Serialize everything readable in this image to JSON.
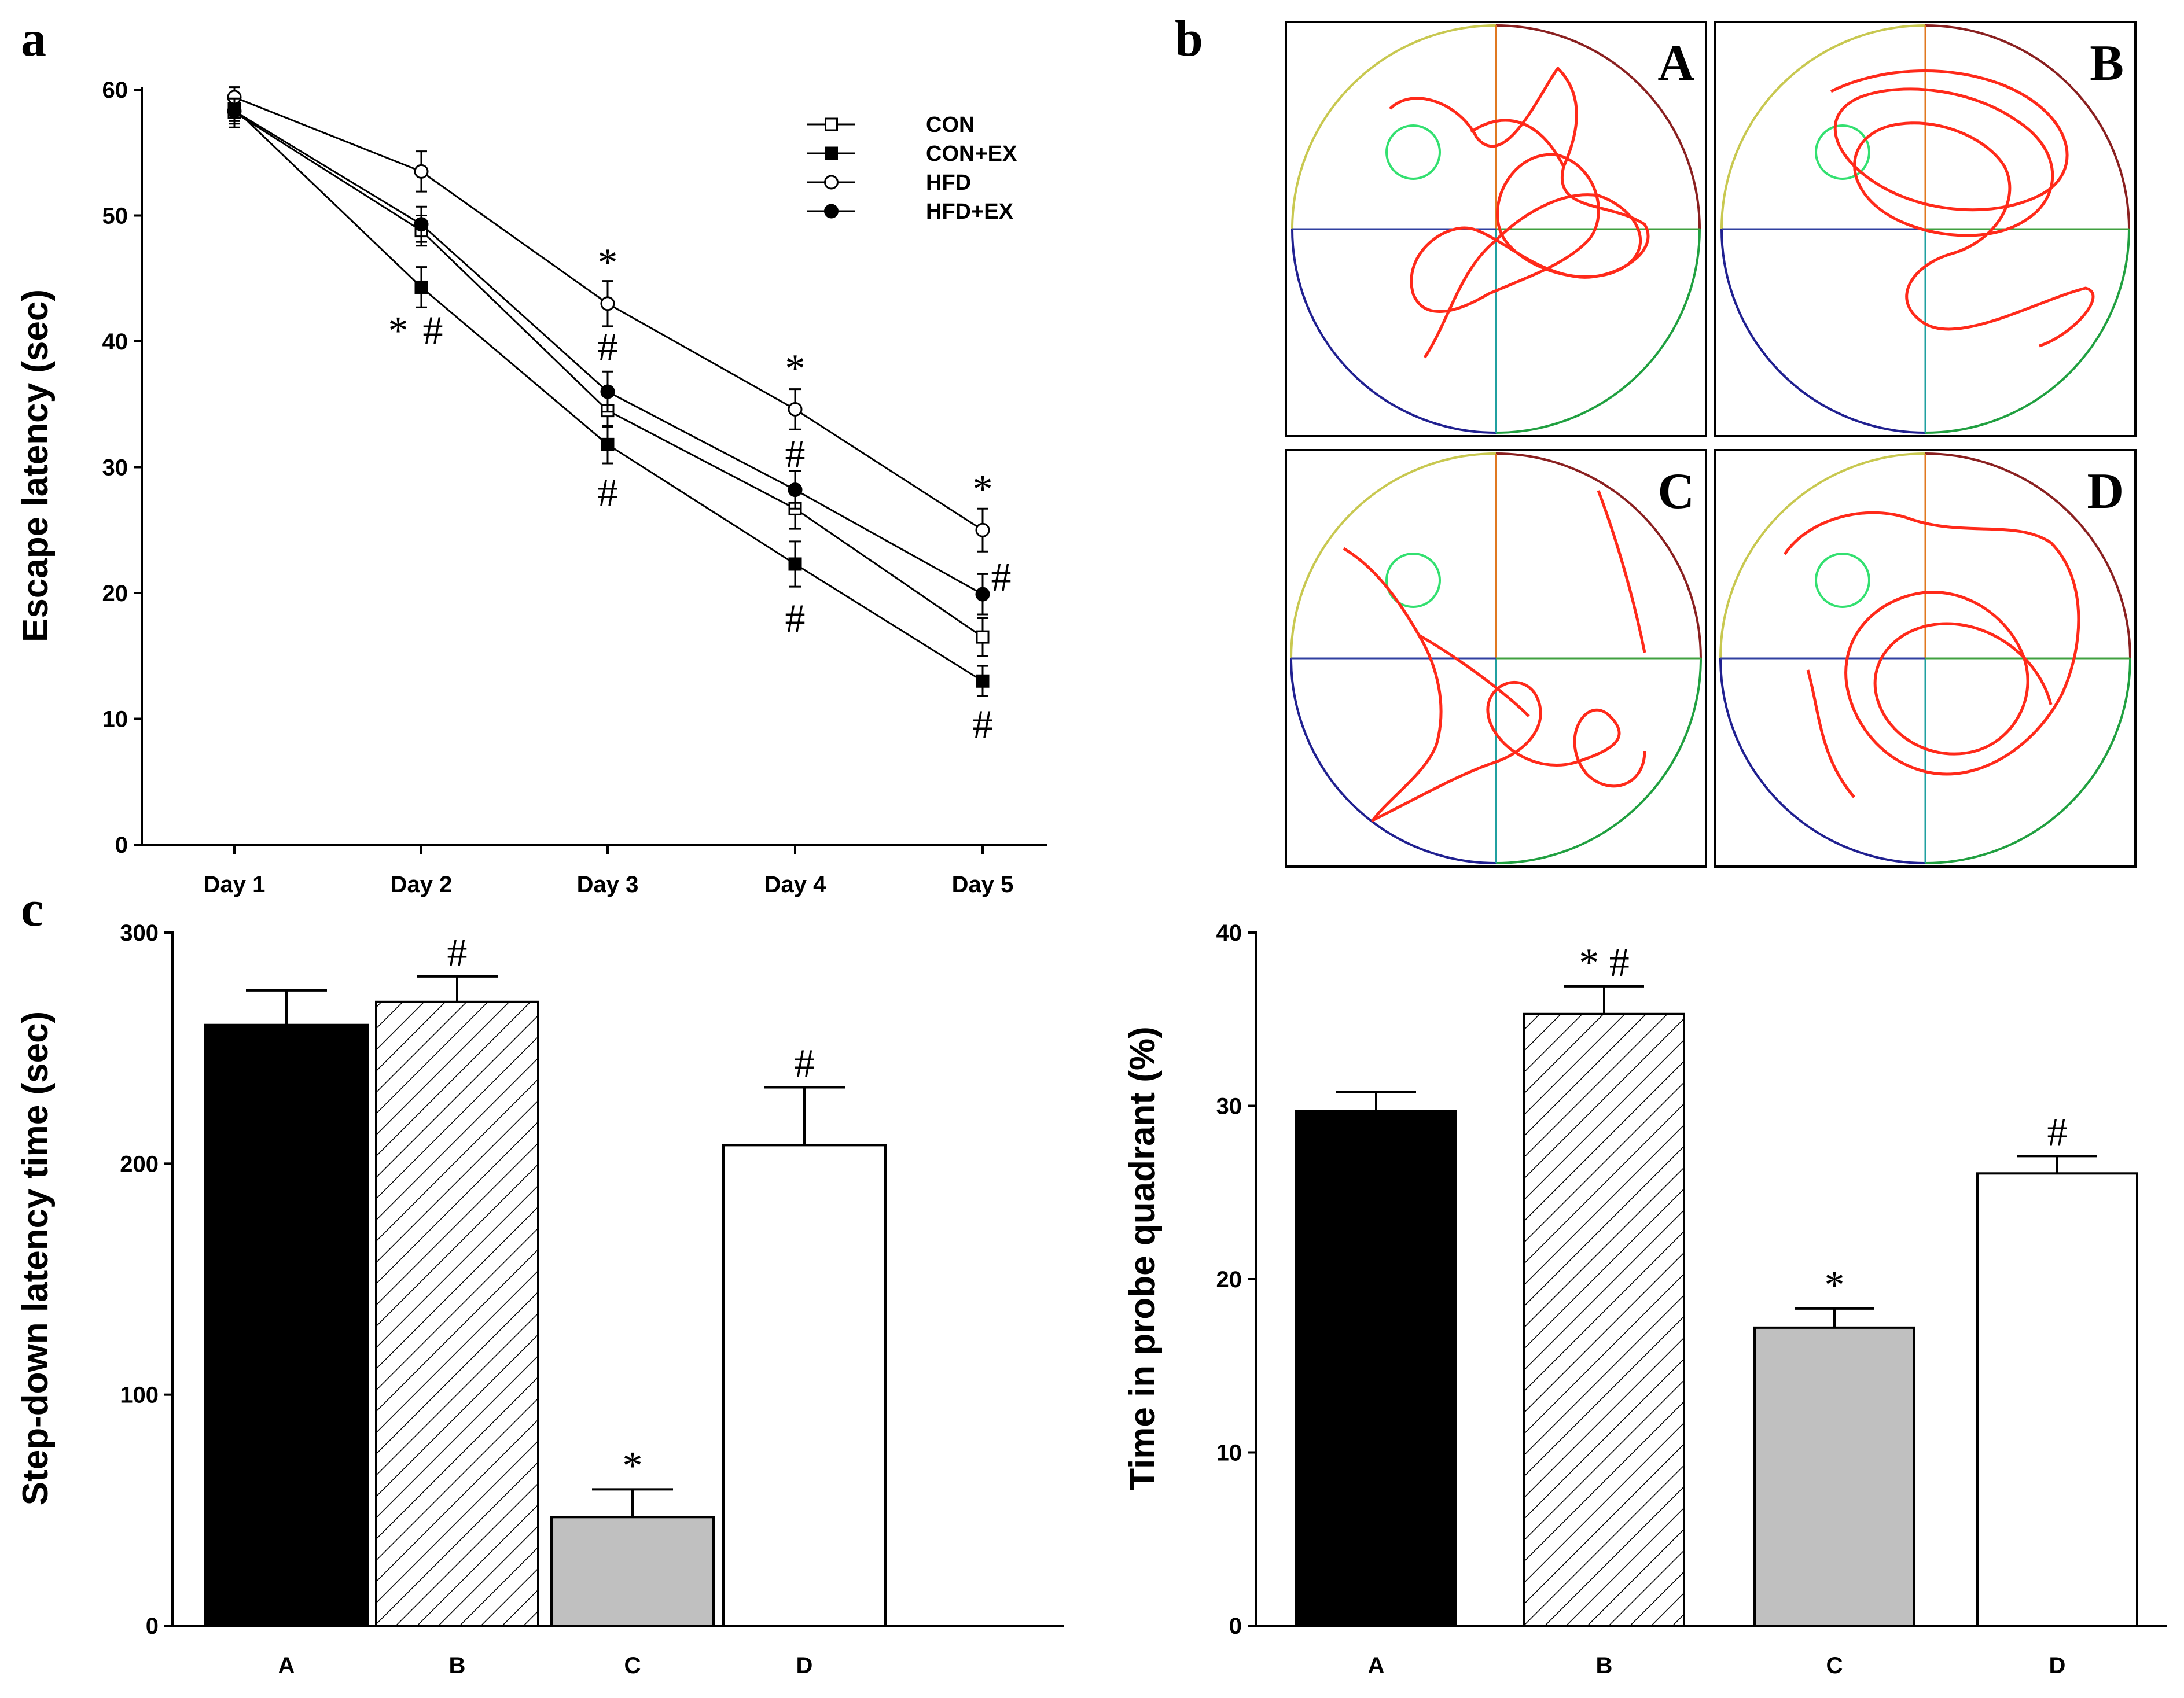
{
  "panel_labels": {
    "a": "a",
    "b": "b",
    "c": "c"
  },
  "colors": {
    "ink": "#000000",
    "track": "#ff2a1a",
    "platform": "#33e070",
    "bar_A": "#000000",
    "bar_C": "#c0c0c0",
    "bar_D": "#ffffff"
  },
  "chart_data": [
    {
      "type": "line",
      "title": "",
      "xlabel": "",
      "ylabel": "Escape latency (sec)",
      "categories": [
        "Day 1",
        "Day 2",
        "Day 3",
        "Day 4",
        "Day 5"
      ],
      "ylim": [
        0,
        60
      ],
      "yticks": [
        "0",
        "10",
        "20",
        "30",
        "40",
        "50",
        "60"
      ],
      "series": [
        {
          "name": "CON",
          "marker": "open-square",
          "values": [
            58.2,
            48.8,
            34.5,
            26.7,
            16.5
          ],
          "errors": [
            1.2,
            1.2,
            1.3,
            1.6,
            1.5
          ]
        },
        {
          "name": "CON+EX",
          "marker": "filled-square",
          "values": [
            58.5,
            44.3,
            31.8,
            22.3,
            13.0
          ],
          "errors": [
            1.0,
            1.6,
            1.5,
            1.8,
            1.2
          ]
        },
        {
          "name": "HFD",
          "marker": "open-circle",
          "values": [
            59.4,
            53.5,
            43.0,
            34.6,
            25.0
          ],
          "errors": [
            0.8,
            1.6,
            1.8,
            1.6,
            1.7
          ]
        },
        {
          "name": "HFD+EX",
          "marker": "filled-circle",
          "values": [
            58.3,
            49.3,
            36.0,
            28.2,
            19.9
          ],
          "errors": [
            1.0,
            1.4,
            1.6,
            1.5,
            1.6
          ]
        }
      ],
      "annotations": [
        {
          "text": "*",
          "x": "Day 2",
          "y": 40.8
        },
        {
          "text": "#",
          "x": "Day 2",
          "y": 40.8,
          "offset": "right"
        },
        {
          "text": "*",
          "x": "Day 3",
          "y": 46.2
        },
        {
          "text": "#",
          "x": "Day 3",
          "y": 39.5
        },
        {
          "text": "#",
          "x": "Day 3",
          "y": 27.9
        },
        {
          "text": "*",
          "x": "Day 4",
          "y": 37.8
        },
        {
          "text": "#",
          "x": "Day 4",
          "y": 31.0
        },
        {
          "text": "#",
          "x": "Day 4",
          "y": 17.9
        },
        {
          "text": "*",
          "x": "Day 5",
          "y": 28.2
        },
        {
          "text": "#",
          "x": "Day 5",
          "y": 21.2,
          "offset": "right"
        },
        {
          "text": "#",
          "x": "Day 5",
          "y": 9.5
        }
      ],
      "legend_position": "top-right"
    },
    {
      "type": "bar",
      "title": "",
      "xlabel": "",
      "ylabel": "Step-down latency time (sec)",
      "categories": [
        "A",
        "B",
        "C",
        "D"
      ],
      "values": [
        260,
        270,
        47,
        208
      ],
      "errors": [
        15,
        11,
        12,
        25
      ],
      "annotations": [
        "",
        "#",
        "*",
        "#"
      ],
      "ylim": [
        0,
        300
      ],
      "yticks": [
        "0",
        "100",
        "200",
        "300"
      ],
      "fills": [
        "solid-black",
        "diagonal-hatch",
        "solid-gray",
        "white"
      ]
    },
    {
      "type": "bar",
      "title": "",
      "xlabel": "",
      "ylabel": "Time in probe quadrant (%)",
      "categories": [
        "A",
        "B",
        "C",
        "D"
      ],
      "values": [
        29.7,
        35.3,
        17.2,
        26.1
      ],
      "errors": [
        1.1,
        1.6,
        1.1,
        1.0
      ],
      "annotations": [
        "",
        "*#",
        "*",
        "#"
      ],
      "ylim": [
        0,
        40
      ],
      "yticks": [
        "0",
        "10",
        "20",
        "30",
        "40"
      ],
      "fills": [
        "solid-black",
        "diagonal-hatch",
        "solid-gray",
        "white"
      ]
    }
  ],
  "swim_tracks": {
    "labels": [
      "A",
      "B",
      "C",
      "D"
    ]
  }
}
